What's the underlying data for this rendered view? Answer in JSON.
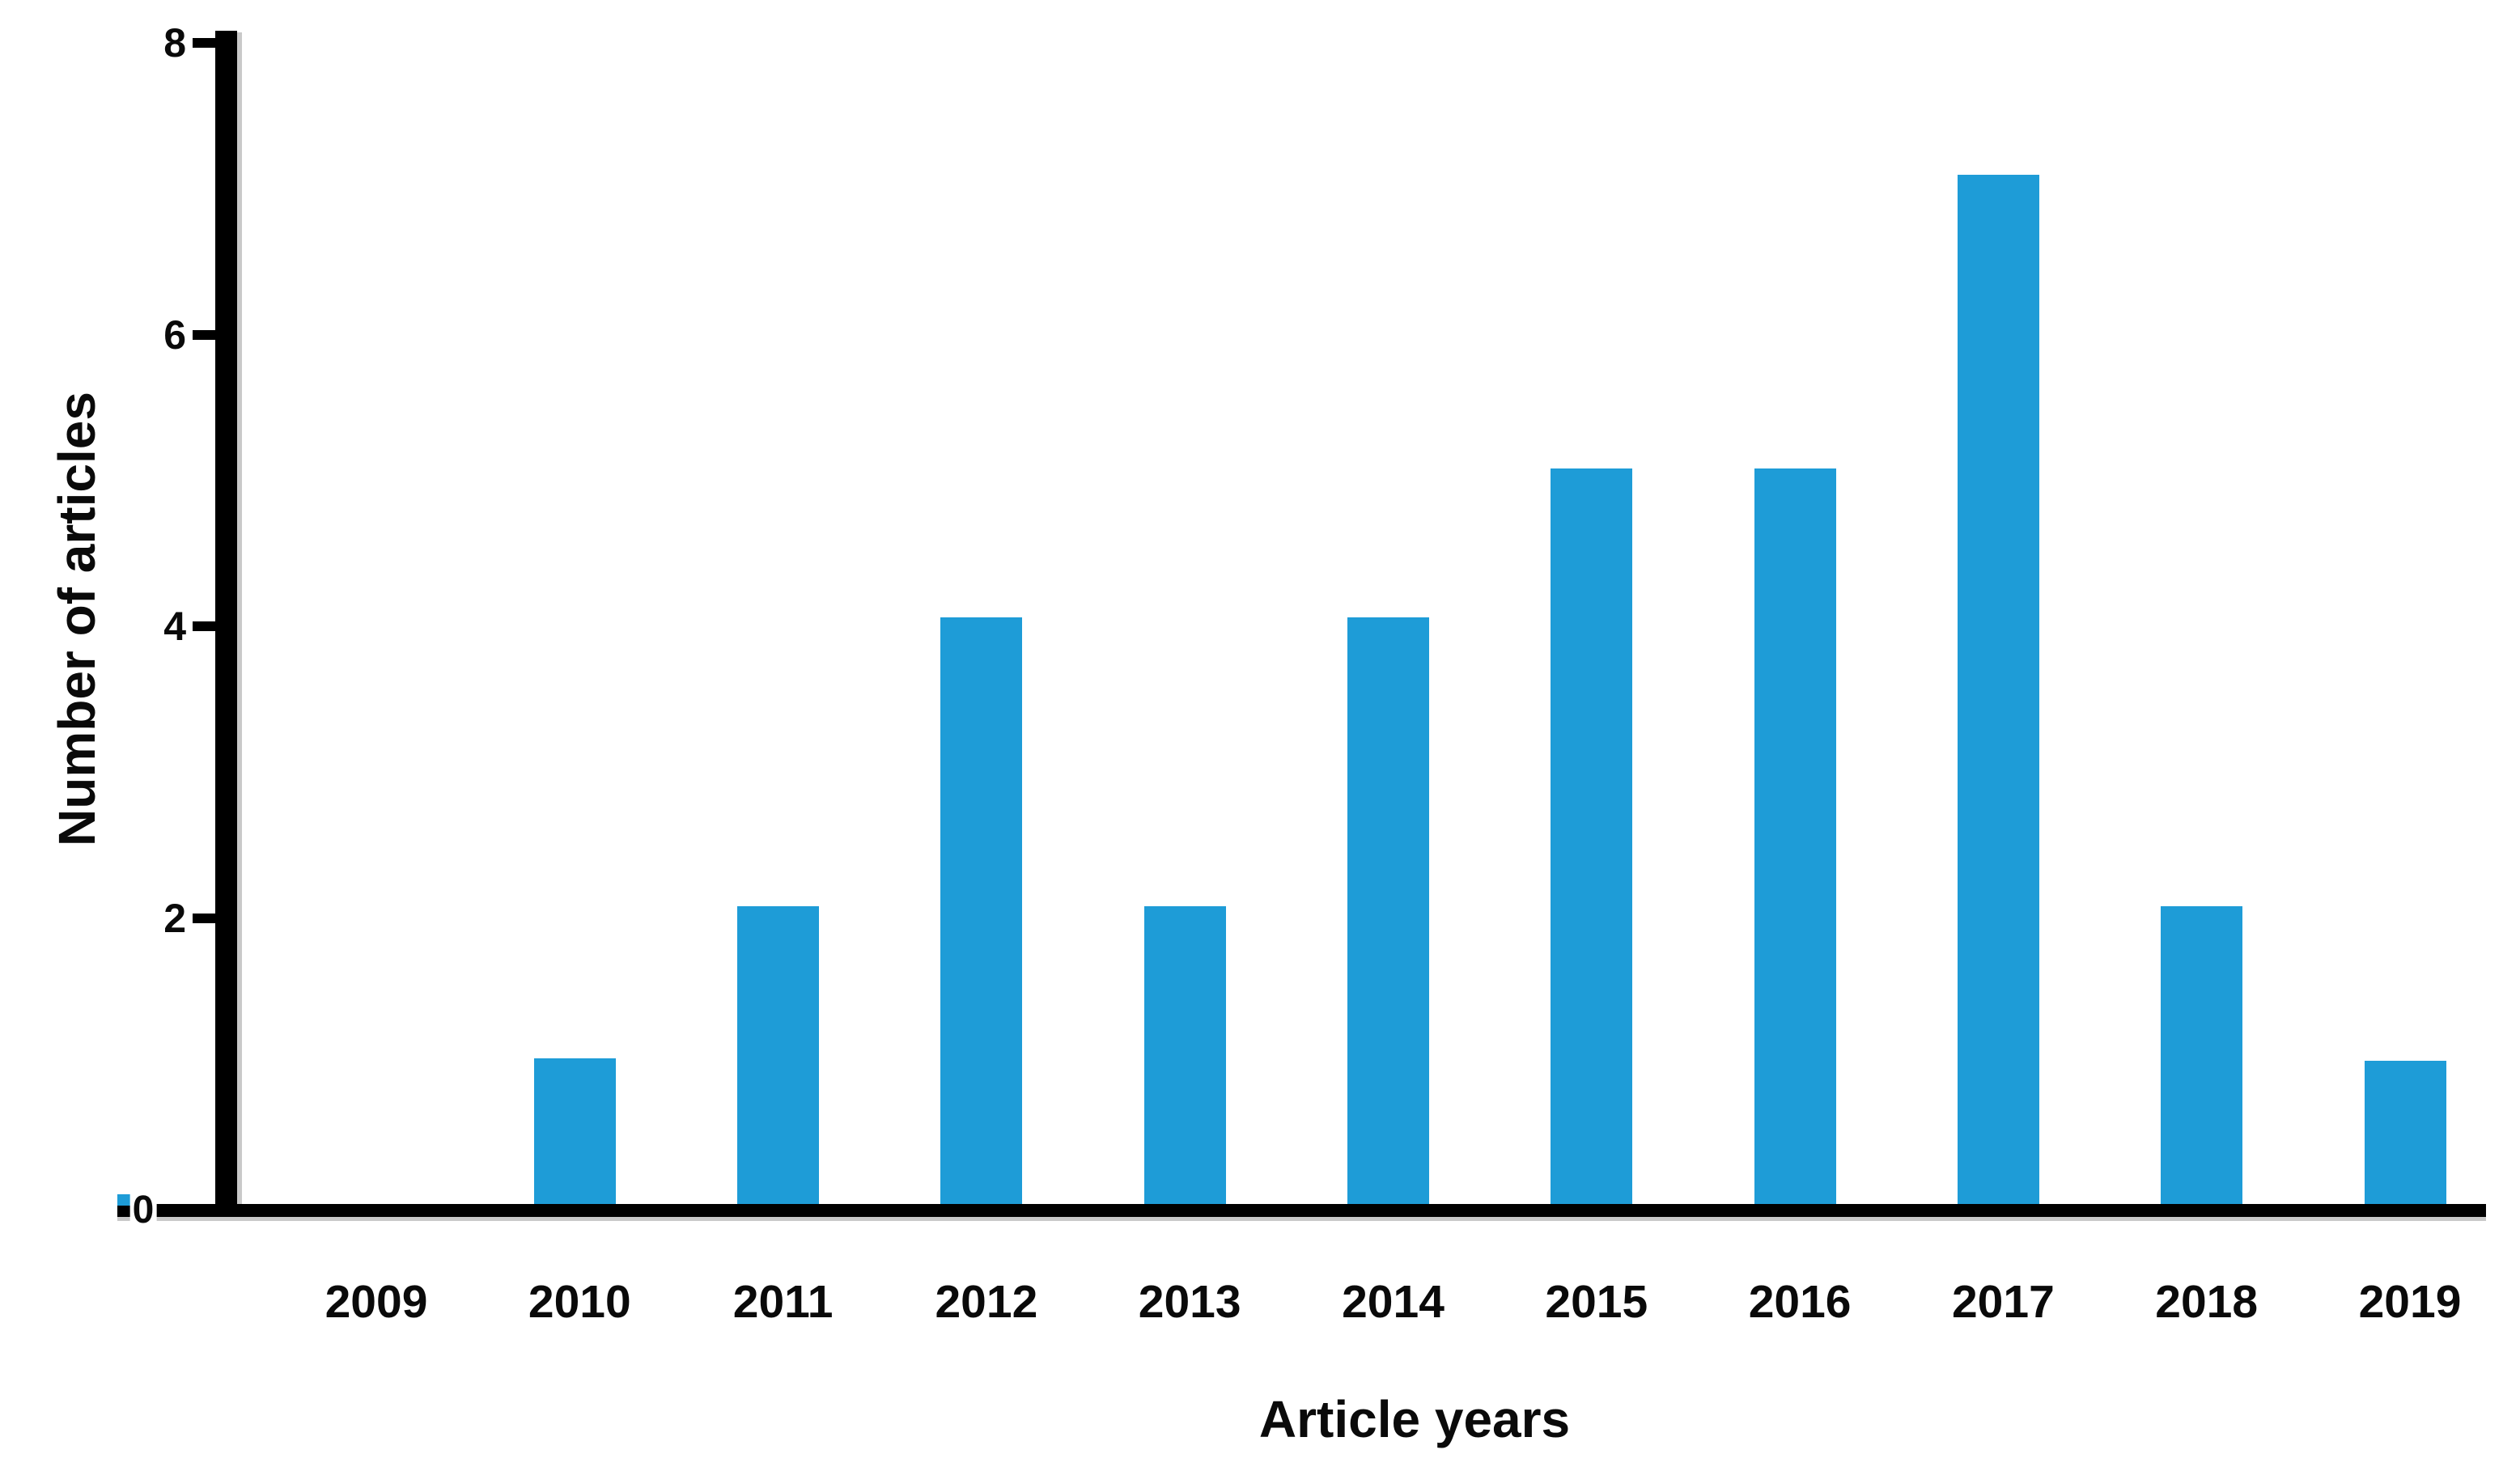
{
  "figure": {
    "background_color": "#FFFFFF",
    "has_title": false,
    "has_legend": false,
    "stray_origin_dash_present": true
  },
  "chart_data": {
    "type": "bar",
    "title": "",
    "xlabel": "Article years",
    "ylabel": "Number of articles",
    "categories": [
      "2009",
      "2010",
      "2011",
      "2012",
      "2013",
      "2014",
      "2015",
      "2016",
      "2017",
      "2018",
      "2019"
    ],
    "values": [
      0,
      1,
      2,
      4,
      2,
      4,
      5,
      5,
      7,
      2,
      1
    ],
    "values_as_drawn": [
      0,
      1.0,
      2.04,
      4.02,
      2.04,
      4.02,
      5.04,
      5.04,
      7.05,
      2.04,
      0.98
    ],
    "ylim": [
      0,
      8
    ],
    "yticks": [
      0,
      2,
      4,
      6,
      8
    ],
    "ytick_labels": [
      "0",
      "2",
      "4",
      "6",
      "8"
    ],
    "grid": false,
    "legend_position": "none",
    "bar_color": "#1E9CD7",
    "axis_color": "#000000",
    "axis_shadow_color": "#C9C9C9",
    "text_color": "#0A0A0A"
  }
}
